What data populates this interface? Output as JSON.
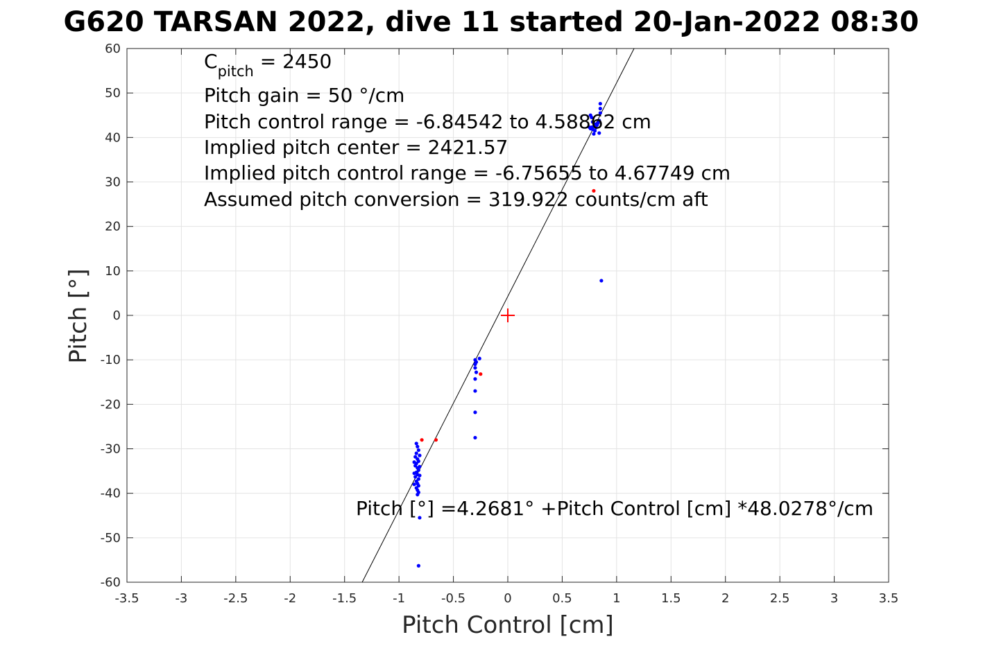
{
  "chart_data": {
    "type": "scatter",
    "title": "G620 TARSAN 2022, dive 11 started 20-Jan-2022 08:30",
    "xlabel": "Pitch Control [cm]",
    "ylabel": "Pitch [°]",
    "xlim": [
      -3.5,
      3.5
    ],
    "ylim": [
      -60,
      60
    ],
    "xticks": [
      -3.5,
      -3,
      -2.5,
      -2,
      -1.5,
      -1,
      -0.5,
      0,
      0.5,
      1,
      1.5,
      2,
      2.5,
      3,
      3.5
    ],
    "xtick_labels": [
      "-3.5",
      "-3",
      "-2.5",
      "-2",
      "-1.5",
      "-1",
      "-0.5",
      "0",
      "0.5",
      "1",
      "1.5",
      "2",
      "2.5",
      "3",
      "3.5"
    ],
    "yticks": [
      60,
      50,
      40,
      30,
      20,
      10,
      0,
      -10,
      -20,
      -30,
      -40,
      -50,
      -60
    ],
    "ytick_labels": [
      "60",
      "50",
      "40",
      "30",
      "20",
      "10",
      "0",
      "-10",
      "-20",
      "-30",
      "-40",
      "-50",
      "-60"
    ],
    "grid": true,
    "annotations": {
      "c_pitch_label": "C",
      "c_pitch_sub": "pitch",
      "c_pitch_value": " = 2450",
      "lines": [
        "Pitch gain = 50 °/cm",
        "Pitch control range = -6.84542 to 4.58862 cm",
        "Implied pitch center = 2421.57",
        "Implied pitch control range = -6.75655 to 4.67749 cm",
        "Assumed pitch conversion = 319.922 counts/cm aft"
      ],
      "fit_equation": "Pitch [°] =4.2681° +Pitch Control [cm] *48.0278°/cm"
    },
    "fit_line": {
      "intercept": 4.2681,
      "slope": 48.0278,
      "color": "#000000"
    },
    "center_marker": {
      "x": 0,
      "y": 0,
      "color": "#ff0000"
    },
    "series": [
      {
        "color": "#0000ff",
        "points": [
          [
            0.76,
            42.0
          ],
          [
            0.77,
            42.3
          ],
          [
            0.78,
            41.8
          ],
          [
            0.79,
            42.5
          ],
          [
            0.8,
            43.0
          ],
          [
            0.81,
            42.2
          ],
          [
            0.78,
            43.5
          ],
          [
            0.77,
            44.5
          ],
          [
            0.76,
            45.0
          ],
          [
            0.8,
            41.5
          ],
          [
            0.82,
            42.8
          ],
          [
            0.83,
            43.3
          ],
          [
            0.84,
            41.0
          ],
          [
            0.84,
            43.8
          ],
          [
            0.79,
            40.8
          ],
          [
            0.85,
            46.5
          ],
          [
            0.85,
            47.6
          ],
          [
            0.85,
            45.5
          ],
          [
            0.75,
            42.3
          ],
          [
            0.86,
            7.8
          ],
          [
            -0.3,
            -10.0
          ],
          [
            -0.3,
            -11.0
          ],
          [
            -0.3,
            -11.8
          ],
          [
            -0.29,
            -12.8
          ],
          [
            -0.3,
            -14.3
          ],
          [
            -0.3,
            -17.0
          ],
          [
            -0.3,
            -21.8
          ],
          [
            -0.3,
            -27.5
          ],
          [
            -0.26,
            -9.7
          ],
          [
            -0.29,
            -10.5
          ],
          [
            -0.84,
            -28.8
          ],
          [
            -0.83,
            -29.5
          ],
          [
            -0.82,
            -30.3
          ],
          [
            -0.84,
            -31.0
          ],
          [
            -0.85,
            -31.8
          ],
          [
            -0.83,
            -32.3
          ],
          [
            -0.82,
            -32.8
          ],
          [
            -0.84,
            -33.3
          ],
          [
            -0.85,
            -33.8
          ],
          [
            -0.83,
            -34.3
          ],
          [
            -0.82,
            -34.8
          ],
          [
            -0.84,
            -35.3
          ],
          [
            -0.83,
            -35.8
          ],
          [
            -0.85,
            -36.3
          ],
          [
            -0.82,
            -36.8
          ],
          [
            -0.84,
            -37.3
          ],
          [
            -0.83,
            -37.8
          ],
          [
            -0.82,
            -38.3
          ],
          [
            -0.84,
            -38.8
          ],
          [
            -0.83,
            -39.3
          ],
          [
            -0.82,
            -39.8
          ],
          [
            -0.83,
            -40.3
          ],
          [
            -0.81,
            -34.0
          ],
          [
            -0.86,
            -33.0
          ],
          [
            -0.81,
            -36.0
          ],
          [
            -0.86,
            -35.5
          ],
          [
            -0.81,
            -31.5
          ],
          [
            -0.86,
            -38.0
          ],
          [
            -0.81,
            -45.5
          ],
          [
            -0.82,
            -56.3
          ]
        ]
      },
      {
        "color": "#ff0000",
        "points": [
          [
            -0.79,
            -28.0
          ],
          [
            -0.66,
            -28.0
          ],
          [
            -0.25,
            -13.2
          ],
          [
            0.79,
            28.0
          ]
        ]
      }
    ]
  }
}
